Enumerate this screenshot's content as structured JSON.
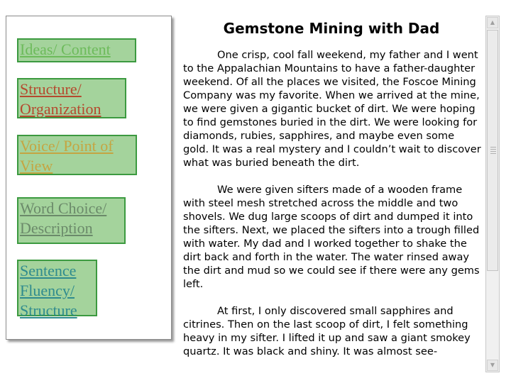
{
  "sidebar": {
    "items": [
      {
        "label": "Ideas/ Content"
      },
      {
        "label": "Structure/ Organization"
      },
      {
        "label": "Voice/ Point of View"
      },
      {
        "label": "Word Choice/ Description"
      },
      {
        "label": "Sentence Fluency/ Structure"
      }
    ]
  },
  "document": {
    "title": "Gemstone Mining with Dad",
    "paragraphs": [
      "One crisp, cool fall weekend, my father and I went to the Appalachian Mountains to have a father-daughter weekend.  Of all the places we visited, the Foscoe Mining Company was my favorite.  When we arrived at the mine, we were given a gigantic bucket of dirt.  We were hoping to find gemstones buried in the dirt.  We were looking for diamonds, rubies, sapphires, and maybe even some gold.  It was a real mystery and I couldn’t wait to discover what was buried beneath the dirt.",
      "We were given sifters made of a wooden frame with steel mesh stretched across the middle and two shovels.  We dug large scoops of dirt and dumped it into the sifters.  Next, we placed the sifters into a trough filled with water.  My dad and I worked together to shake the dirt back and forth in the water.  The water rinsed away the dirt and mud so we could see if there were any gems left.",
      "At first, I only discovered small sapphires and citrines.  Then on the last scoop of dirt, I felt something heavy in my sifter.  I lifted it up and saw a giant smokey quartz.  It was black and shiny.  It was almost see-"
    ]
  },
  "scrollbar": {
    "up_icon": "scroll-up-arrow",
    "down_icon": "scroll-down-arrow"
  }
}
